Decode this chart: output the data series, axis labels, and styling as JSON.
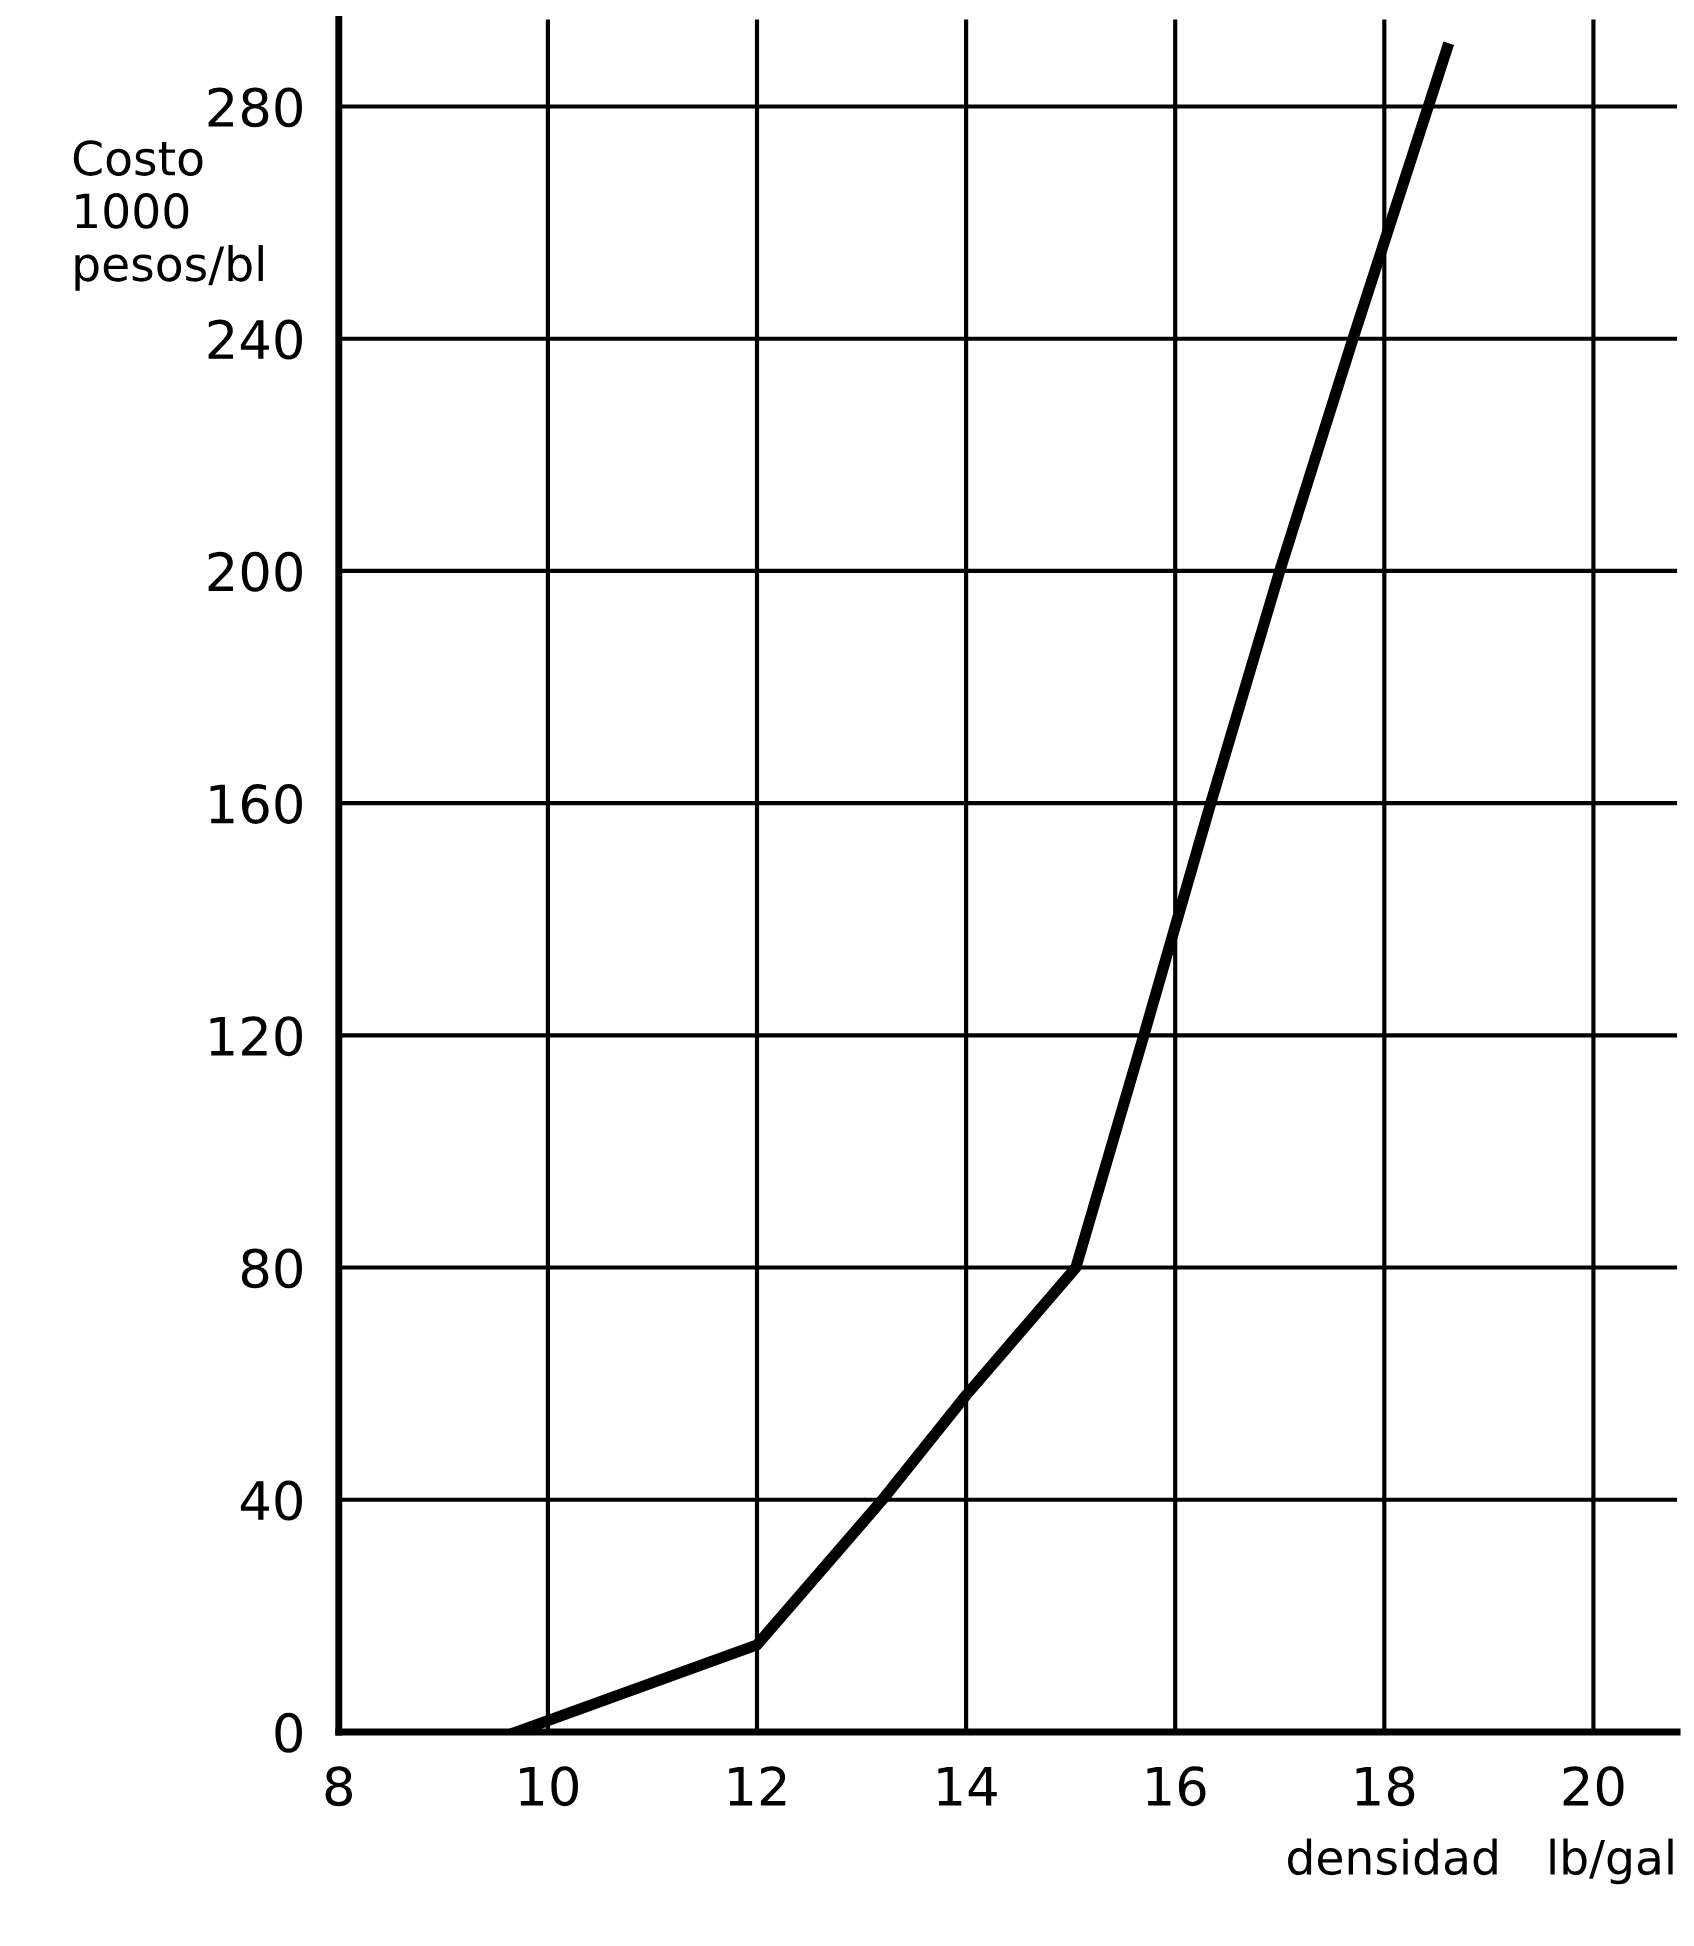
{
  "chart_data": {
    "type": "line",
    "xlabel": "densidad   lb/gal",
    "ylabel": "Costo\n1000\npesos/bl",
    "x": [
      9.7,
      12,
      13.2,
      14,
      15.05,
      15.7,
      16.34,
      17.0,
      17.7,
      18.6
    ],
    "series": [
      {
        "color": "#000000",
        "values": [
          0,
          15,
          40,
          58,
          80,
          120,
          160,
          200,
          240,
          290
        ]
      }
    ],
    "xlim": [
      8,
      20.8
    ],
    "ylim": [
      0,
      295
    ],
    "xticks": [
      8,
      10,
      12,
      14,
      16,
      18,
      20
    ],
    "yticks": [
      0,
      40,
      80,
      120,
      160,
      200,
      240,
      280
    ],
    "grid": true,
    "marker": "none",
    "line_style": "solid"
  }
}
